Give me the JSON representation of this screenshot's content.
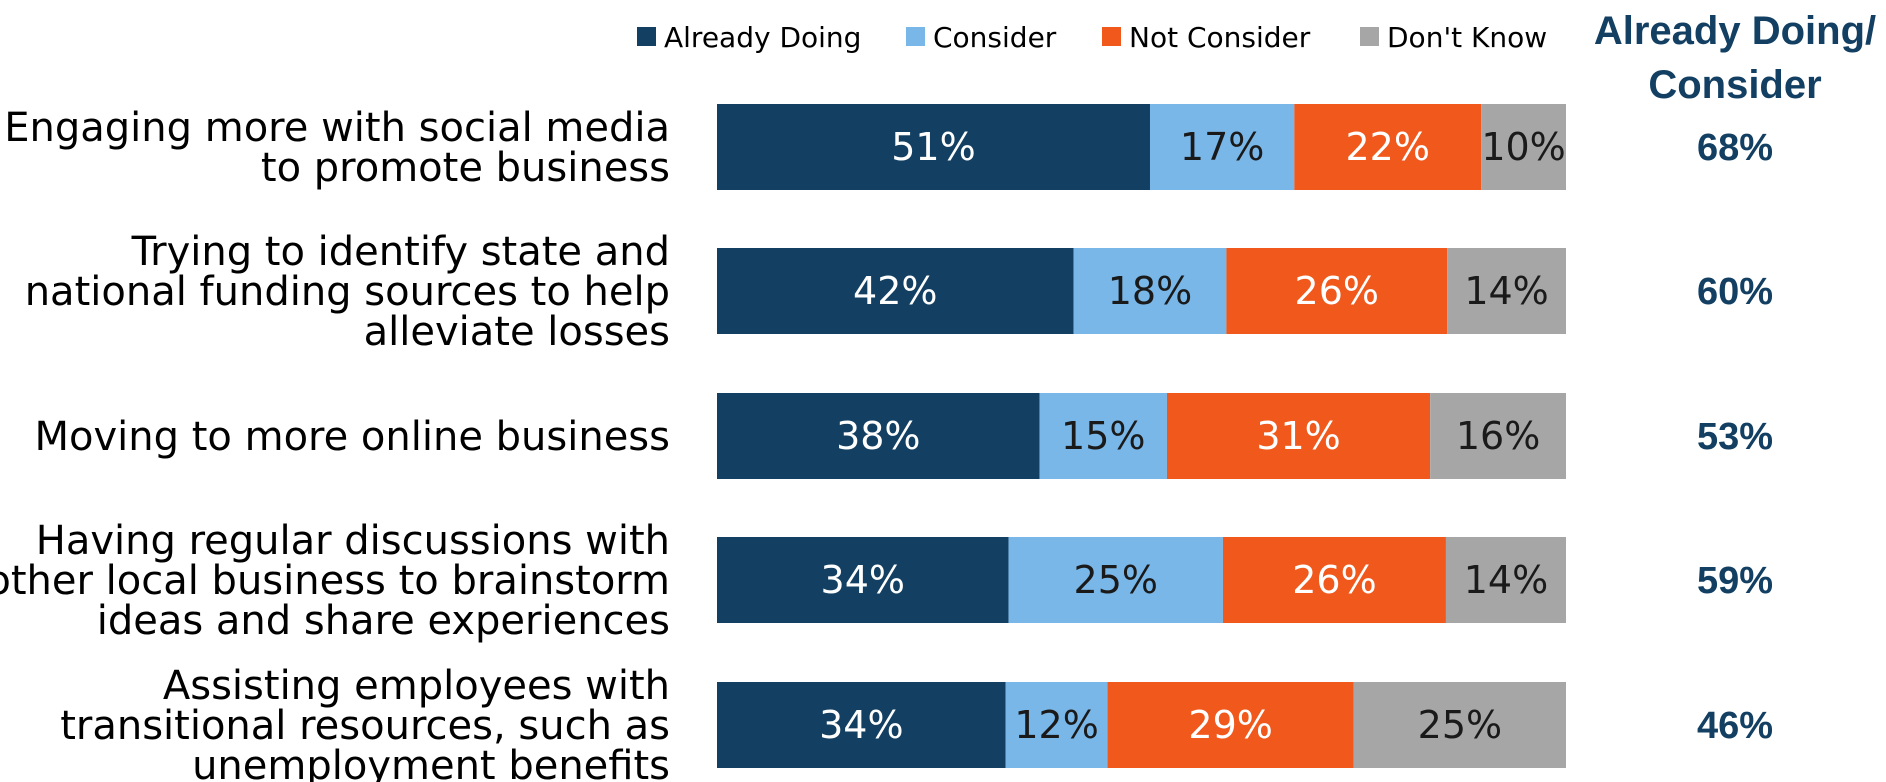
{
  "chart_data": {
    "type": "bar",
    "orientation": "horizontal",
    "stacked": true,
    "title": "",
    "xlabel": "",
    "ylabel": "",
    "xlim": [
      0,
      100
    ],
    "grid": false,
    "legend_position": "top",
    "categories": [
      [
        "Engaging more with social media",
        "to promote business"
      ],
      [
        "Trying to identify state and",
        "national funding sources to help",
        "alleviate losses"
      ],
      [
        "Moving to more online business"
      ],
      [
        "Having regular discussions with",
        "other local business to brainstorm",
        "ideas and share experiences"
      ],
      [
        "Assisting employees with",
        "transitional resources, such as",
        "unemployment benefits"
      ]
    ],
    "series": [
      {
        "name": "Already Doing",
        "color": "#123f62",
        "label_color": "#ffffff",
        "values": [
          51,
          42,
          38,
          34,
          34
        ],
        "labels": [
          "51%",
          "42%",
          "38%",
          "34%",
          "34%"
        ]
      },
      {
        "name": "Consider",
        "color": "#79b7e8",
        "label_color": "#1a1a1a",
        "values": [
          17,
          18,
          15,
          25,
          12
        ],
        "labels": [
          "17%",
          "18%",
          "15%",
          "25%",
          "12%"
        ]
      },
      {
        "name": "Not Consider",
        "color": "#f0581c",
        "label_color": "#ffffff",
        "values": [
          22,
          26,
          31,
          26,
          29
        ],
        "labels": [
          "22%",
          "26%",
          "31%",
          "26%",
          "29%"
        ]
      },
      {
        "name": "Don't Know",
        "color": "#a6a6a6",
        "label_color": "#1a1a1a",
        "values": [
          10,
          14,
          16,
          14,
          25
        ],
        "labels": [
          "10%",
          "14%",
          "16%",
          "14%",
          "25%"
        ]
      }
    ],
    "totals": {
      "header": [
        "Already Doing/",
        "Consider"
      ],
      "values": [
        68,
        60,
        53,
        59,
        46
      ],
      "labels": [
        "68%",
        "60%",
        "53%",
        "59%",
        "46%"
      ],
      "color": "#123f62"
    }
  }
}
